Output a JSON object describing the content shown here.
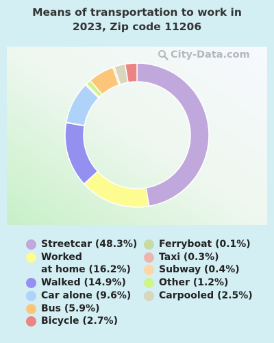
{
  "title": "Means of transportation to work in 2023, Zip code 11206",
  "watermark": "City-Data.com",
  "chart_data": {
    "type": "donut",
    "title": "Means of transportation to work in 2023, Zip code 11206",
    "slices": [
      {
        "label": "Streetcar (48.3%)",
        "value": 48.3,
        "color": "#c0a8dc"
      },
      {
        "label": "Worked at home (16.2%)",
        "value": 16.2,
        "color": "#fdfc90"
      },
      {
        "label": "Walked (14.9%)",
        "value": 14.9,
        "color": "#9390f0"
      },
      {
        "label": "Ferryboat (0.1%)",
        "value": 0.1,
        "color": "#c6dba6"
      },
      {
        "label": "Car alone (9.6%)",
        "value": 9.6,
        "color": "#aed2f8"
      },
      {
        "label": "Taxi (0.3%)",
        "value": 0.3,
        "color": "#f0b4b0"
      },
      {
        "label": "Other (1.2%)",
        "value": 1.2,
        "color": "#d0f48c"
      },
      {
        "label": "Bus (5.9%)",
        "value": 5.9,
        "color": "#fcc679"
      },
      {
        "label": "Subway (0.4%)",
        "value": 0.4,
        "color": "#fcd6a4"
      },
      {
        "label": "Carpooled (2.5%)",
        "value": 2.5,
        "color": "#d8d6bc"
      },
      {
        "label": "Bicycle (2.7%)",
        "value": 2.7,
        "color": "#ec8484"
      }
    ],
    "legend_left": [
      {
        "label_lines": [
          "Streetcar (48.3%)"
        ],
        "color": "#c0a8dc"
      },
      {
        "label_lines": [
          "Worked",
          "at home (16.2%)"
        ],
        "color": "#fdfc90"
      },
      {
        "label_lines": [
          "Walked (14.9%)"
        ],
        "color": "#9390f0"
      },
      {
        "label_lines": [
          "Car alone (9.6%)"
        ],
        "color": "#aed2f8"
      },
      {
        "label_lines": [
          "Bus (5.9%)"
        ],
        "color": "#fcc679"
      },
      {
        "label_lines": [
          "Bicycle (2.7%)"
        ],
        "color": "#ec8484"
      }
    ],
    "legend_right": [
      {
        "label_lines": [
          "Ferryboat (0.1%)"
        ],
        "color": "#c6dba6"
      },
      {
        "label_lines": [
          "Taxi (0.3%)"
        ],
        "color": "#f0b4b0"
      },
      {
        "label_lines": [
          "Subway (0.4%)"
        ],
        "color": "#fcd6a4"
      },
      {
        "label_lines": [
          "Other (1.2%)"
        ],
        "color": "#d0f48c"
      },
      {
        "label_lines": [
          "Carpooled (2.5%)"
        ],
        "color": "#d8d6bc"
      }
    ]
  }
}
